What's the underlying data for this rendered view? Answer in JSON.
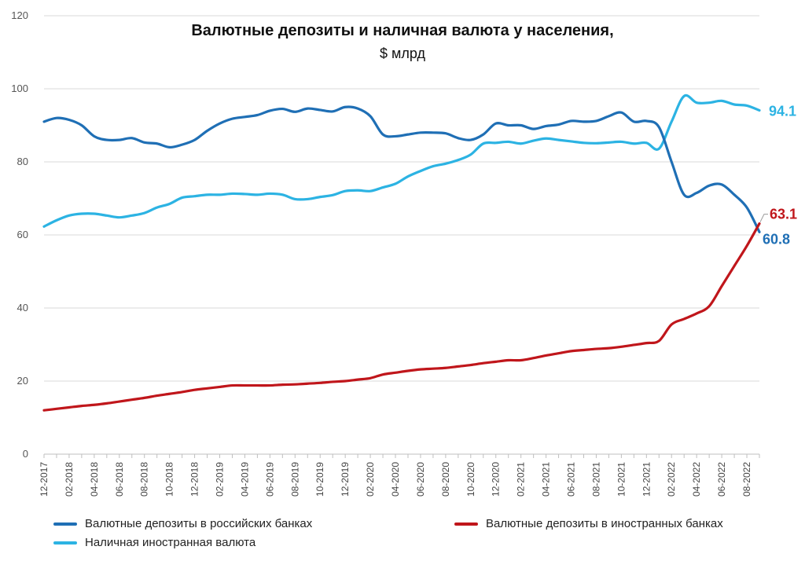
{
  "chart_data": {
    "type": "line",
    "title": "Валютные депозиты и наличная валюта у населения,",
    "subtitle": "$ млрд",
    "ylim": [
      0,
      120
    ],
    "yticks": [
      0,
      20,
      40,
      60,
      80,
      100,
      120
    ],
    "grid": "horizontal",
    "legend_position": "bottom",
    "x": [
      "12-2017",
      "01-2018",
      "02-2018",
      "03-2018",
      "04-2018",
      "05-2018",
      "06-2018",
      "07-2018",
      "08-2018",
      "09-2018",
      "10-2018",
      "11-2018",
      "12-2018",
      "01-2019",
      "02-2019",
      "03-2019",
      "04-2019",
      "05-2019",
      "06-2019",
      "07-2019",
      "08-2019",
      "09-2019",
      "10-2019",
      "11-2019",
      "12-2019",
      "01-2020",
      "02-2020",
      "03-2020",
      "04-2020",
      "05-2020",
      "06-2020",
      "07-2020",
      "08-2020",
      "09-2020",
      "10-2020",
      "11-2020",
      "12-2020",
      "01-2021",
      "02-2021",
      "03-2021",
      "04-2021",
      "05-2021",
      "06-2021",
      "07-2021",
      "08-2021",
      "09-2021",
      "10-2021",
      "11-2021",
      "12-2021",
      "01-2022",
      "02-2022",
      "03-2022",
      "04-2022",
      "05-2022",
      "06-2022",
      "07-2022",
      "08-2022",
      "09-2022"
    ],
    "xtick_labels": [
      "12-2017",
      "02-2018",
      "04-2018",
      "06-2018",
      "08-2018",
      "10-2018",
      "12-2018",
      "02-2019",
      "04-2019",
      "06-2019",
      "08-2019",
      "10-2019",
      "12-2019",
      "02-2020",
      "04-2020",
      "06-2020",
      "08-2020",
      "10-2020",
      "12-2020",
      "02-2021",
      "04-2021",
      "06-2021",
      "08-2021",
      "10-2021",
      "12-2021",
      "02-2022",
      "04-2022",
      "06-2022",
      "08-2022"
    ],
    "series": [
      {
        "name": "Валютные депозиты в российских банках",
        "color": "#1f6fb5",
        "end_label": "60.8",
        "values": [
          91.0,
          92.0,
          91.5,
          90.0,
          87.0,
          86.0,
          86.0,
          86.5,
          85.3,
          85.0,
          84.0,
          84.7,
          86.0,
          88.5,
          90.5,
          91.8,
          92.3,
          92.8,
          94.0,
          94.5,
          93.7,
          94.6,
          94.2,
          93.8,
          95.0,
          94.6,
          92.5,
          87.5,
          87.0,
          87.5,
          88.0,
          88.0,
          87.8,
          86.5,
          86.0,
          87.5,
          90.5,
          90.0,
          90.0,
          89.0,
          89.8,
          90.2,
          91.2,
          91.0,
          91.2,
          92.5,
          93.5,
          91.0,
          91.2,
          89.5,
          80.0,
          71.0,
          71.5,
          73.5,
          73.8,
          71.0,
          67.5,
          60.8
        ]
      },
      {
        "name": "Валютные депозиты в иностранных банках",
        "color": "#c0161b",
        "end_label": "63.1",
        "values": [
          12.0,
          12.4,
          12.8,
          13.2,
          13.5,
          13.9,
          14.4,
          14.9,
          15.4,
          16.0,
          16.5,
          17.0,
          17.6,
          18.0,
          18.4,
          18.8,
          18.8,
          18.8,
          18.8,
          19.0,
          19.1,
          19.3,
          19.5,
          19.8,
          20.0,
          20.4,
          20.8,
          21.8,
          22.3,
          22.8,
          23.2,
          23.4,
          23.6,
          24.0,
          24.4,
          24.9,
          25.3,
          25.7,
          25.7,
          26.3,
          27.0,
          27.6,
          28.2,
          28.5,
          28.8,
          29.0,
          29.4,
          29.9,
          30.4,
          31.0,
          35.5,
          37.0,
          38.5,
          40.5,
          46.0,
          51.5,
          57.0,
          63.1
        ]
      },
      {
        "name": "Наличная иностранная валюта",
        "color": "#2cb3e3",
        "end_label": "94.1",
        "values": [
          62.3,
          64.0,
          65.3,
          65.8,
          65.8,
          65.3,
          64.8,
          65.3,
          66.0,
          67.5,
          68.5,
          70.2,
          70.6,
          71.0,
          71.0,
          71.3,
          71.2,
          71.0,
          71.3,
          71.0,
          69.8,
          69.8,
          70.4,
          70.9,
          72.0,
          72.2,
          72.0,
          73.0,
          74.0,
          76.0,
          77.5,
          78.8,
          79.5,
          80.5,
          82.0,
          85.0,
          85.2,
          85.5,
          85.0,
          85.8,
          86.4,
          86.0,
          85.6,
          85.2,
          85.1,
          85.3,
          85.5,
          85.0,
          85.2,
          83.6,
          91.0,
          98.0,
          96.2,
          96.2,
          96.7,
          95.7,
          95.4,
          94.1
        ]
      }
    ]
  }
}
